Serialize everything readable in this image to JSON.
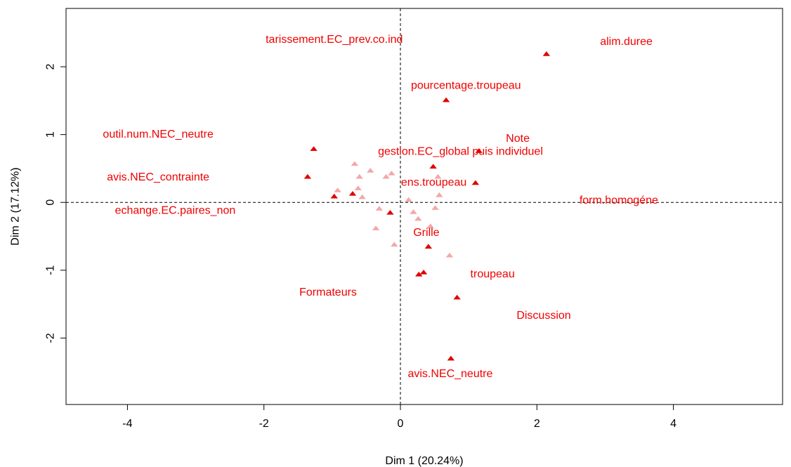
{
  "chart_data": {
    "type": "scatter",
    "title": "",
    "xlabel": "Dim 1 (20.24%)",
    "ylabel": "Dim 2 (17.12%)",
    "xlim": [
      -4.9,
      5.6
    ],
    "ylim": [
      -2.98,
      2.86
    ],
    "x_ticks": [
      -4,
      -2,
      0,
      2,
      4
    ],
    "y_ticks": [
      -2,
      -1,
      0,
      1,
      2
    ],
    "x_tick_labels": [
      "-4",
      "-2",
      "0",
      "2",
      "4"
    ],
    "y_tick_labels": [
      "-2",
      "-1",
      "0",
      "1",
      "2"
    ],
    "reference_lines": {
      "x": 0,
      "y": 0,
      "style": "dashed"
    },
    "grid": false,
    "colors": {
      "strong": "#e00000",
      "light": "#f3a8a8",
      "mid": "#ee7a7a",
      "label": "#f00000"
    },
    "labeled_points": [
      {
        "label": "tarissement.EC_prev.co.ind",
        "x": -0.97,
        "y": 0.09
      },
      {
        "label": "alim.duree",
        "x": 2.14,
        "y": 2.19
      },
      {
        "label": "pourcentage.troupeau",
        "x": 0.67,
        "y": 1.51
      },
      {
        "label": "outil.num.NEC_neutre",
        "x": -1.27,
        "y": 0.79
      },
      {
        "label": "Note",
        "x": 1.15,
        "y": 0.76
      },
      {
        "label": "gestion.EC_global puis individuel",
        "x": 0.48,
        "y": 0.53
      },
      {
        "label": "avis.NEC_contrainte",
        "x": -1.36,
        "y": 0.38
      },
      {
        "label": "ens.troupeau",
        "x": 1.1,
        "y": 0.29
      },
      {
        "label": "form.homogéne",
        "x": -0.7,
        "y": 0.13
      },
      {
        "label": "echange.EC.paires_non",
        "x": -0.15,
        "y": -0.15
      },
      {
        "label": "Grille",
        "x": 0.41,
        "y": -0.65
      },
      {
        "label": "troupeau",
        "x": 0.34,
        "y": -1.03
      },
      {
        "label": "Formateurs",
        "x": 0.27,
        "y": -1.06
      },
      {
        "label": "Discussion",
        "x": 0.83,
        "y": -1.4
      },
      {
        "label": "avis.NEC_neutre",
        "x": 0.74,
        "y": -2.3
      }
    ],
    "label_positions": [
      {
        "x": -0.97,
        "y": 2.4
      },
      {
        "x": 3.31,
        "y": 2.37
      },
      {
        "x": 0.96,
        "y": 1.72
      },
      {
        "x": -3.55,
        "y": 1.0
      },
      {
        "x": 1.72,
        "y": 0.94
      },
      {
        "x": 0.88,
        "y": 0.75
      },
      {
        "x": -3.55,
        "y": 0.37
      },
      {
        "x": 0.49,
        "y": 0.29
      },
      {
        "x": 3.2,
        "y": 0.03
      },
      {
        "x": -3.3,
        "y": -0.12
      },
      {
        "x": 0.38,
        "y": -0.45
      },
      {
        "x": 1.35,
        "y": -1.06
      },
      {
        "x": -1.06,
        "y": -1.33
      },
      {
        "x": 2.1,
        "y": -1.67
      },
      {
        "x": 0.73,
        "y": -2.53
      }
    ],
    "secondary_points": [
      {
        "x": -0.67,
        "y": 0.57,
        "tone": "light"
      },
      {
        "x": -0.44,
        "y": 0.47,
        "tone": "light"
      },
      {
        "x": -0.6,
        "y": 0.38,
        "tone": "light"
      },
      {
        "x": -0.21,
        "y": 0.38,
        "tone": "light"
      },
      {
        "x": -0.13,
        "y": 0.43,
        "tone": "light"
      },
      {
        "x": 0.55,
        "y": 0.38,
        "tone": "light"
      },
      {
        "x": -0.62,
        "y": 0.21,
        "tone": "light"
      },
      {
        "x": -0.92,
        "y": 0.18,
        "tone": "light"
      },
      {
        "x": -0.56,
        "y": 0.08,
        "tone": "light"
      },
      {
        "x": 0.57,
        "y": 0.11,
        "tone": "light"
      },
      {
        "x": 0.12,
        "y": 0.04,
        "tone": "light"
      },
      {
        "x": -0.31,
        "y": -0.09,
        "tone": "light"
      },
      {
        "x": 0.51,
        "y": -0.08,
        "tone": "light"
      },
      {
        "x": 0.19,
        "y": -0.14,
        "tone": "light"
      },
      {
        "x": 0.26,
        "y": -0.24,
        "tone": "light"
      },
      {
        "x": -0.36,
        "y": -0.38,
        "tone": "light"
      },
      {
        "x": 0.44,
        "y": -0.35,
        "tone": "light"
      },
      {
        "x": -0.09,
        "y": -0.62,
        "tone": "light"
      },
      {
        "x": 0.72,
        "y": -0.78,
        "tone": "light"
      }
    ]
  }
}
